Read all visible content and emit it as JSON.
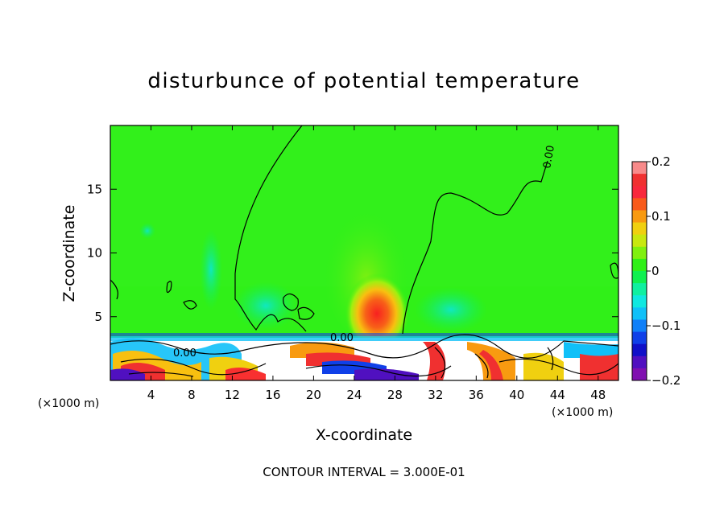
{
  "chart_data": {
    "type": "heatmap",
    "title": "disturbunce of potential temperature",
    "xlabel": "X-coordinate",
    "ylabel": "Z-coordinate",
    "x_unit": "(×1000 m)",
    "z_unit": "(×1000 m)",
    "xlim": [
      0,
      50
    ],
    "ylim": [
      0,
      20
    ],
    "x_ticks": [
      "4",
      "8",
      "12",
      "16",
      "20",
      "24",
      "28",
      "32",
      "36",
      "40",
      "44",
      "48"
    ],
    "y_ticks": [
      "5",
      "10",
      "15"
    ],
    "colorbar": {
      "range": [
        -0.2,
        0.2
      ],
      "ticks": [
        "0.2",
        "0.1",
        "0",
        "-0.1",
        "-0.2"
      ],
      "colors": [
        "#f88a8a",
        "#f03030",
        "#f8283c",
        "#f85a1a",
        "#f89a10",
        "#f0d010",
        "#c8e810",
        "#80f010",
        "#30f018",
        "#10f050",
        "#10f0a0",
        "#10e8e0",
        "#10c0f8",
        "#1080f8",
        "#1040e8",
        "#1010c8",
        "#5010c0",
        "#8010b0"
      ]
    },
    "contour_labels": [
      "0.00",
      "0.00",
      "0.00"
    ],
    "contour_interval": "CONTOUR INTERVAL = 3.000E-01",
    "warm_anomaly": {
      "x_center": 26,
      "z_center": 4.5,
      "max": 0.15
    },
    "notes_series": [
      {
        "name": "",
        "values": []
      }
    ]
  }
}
